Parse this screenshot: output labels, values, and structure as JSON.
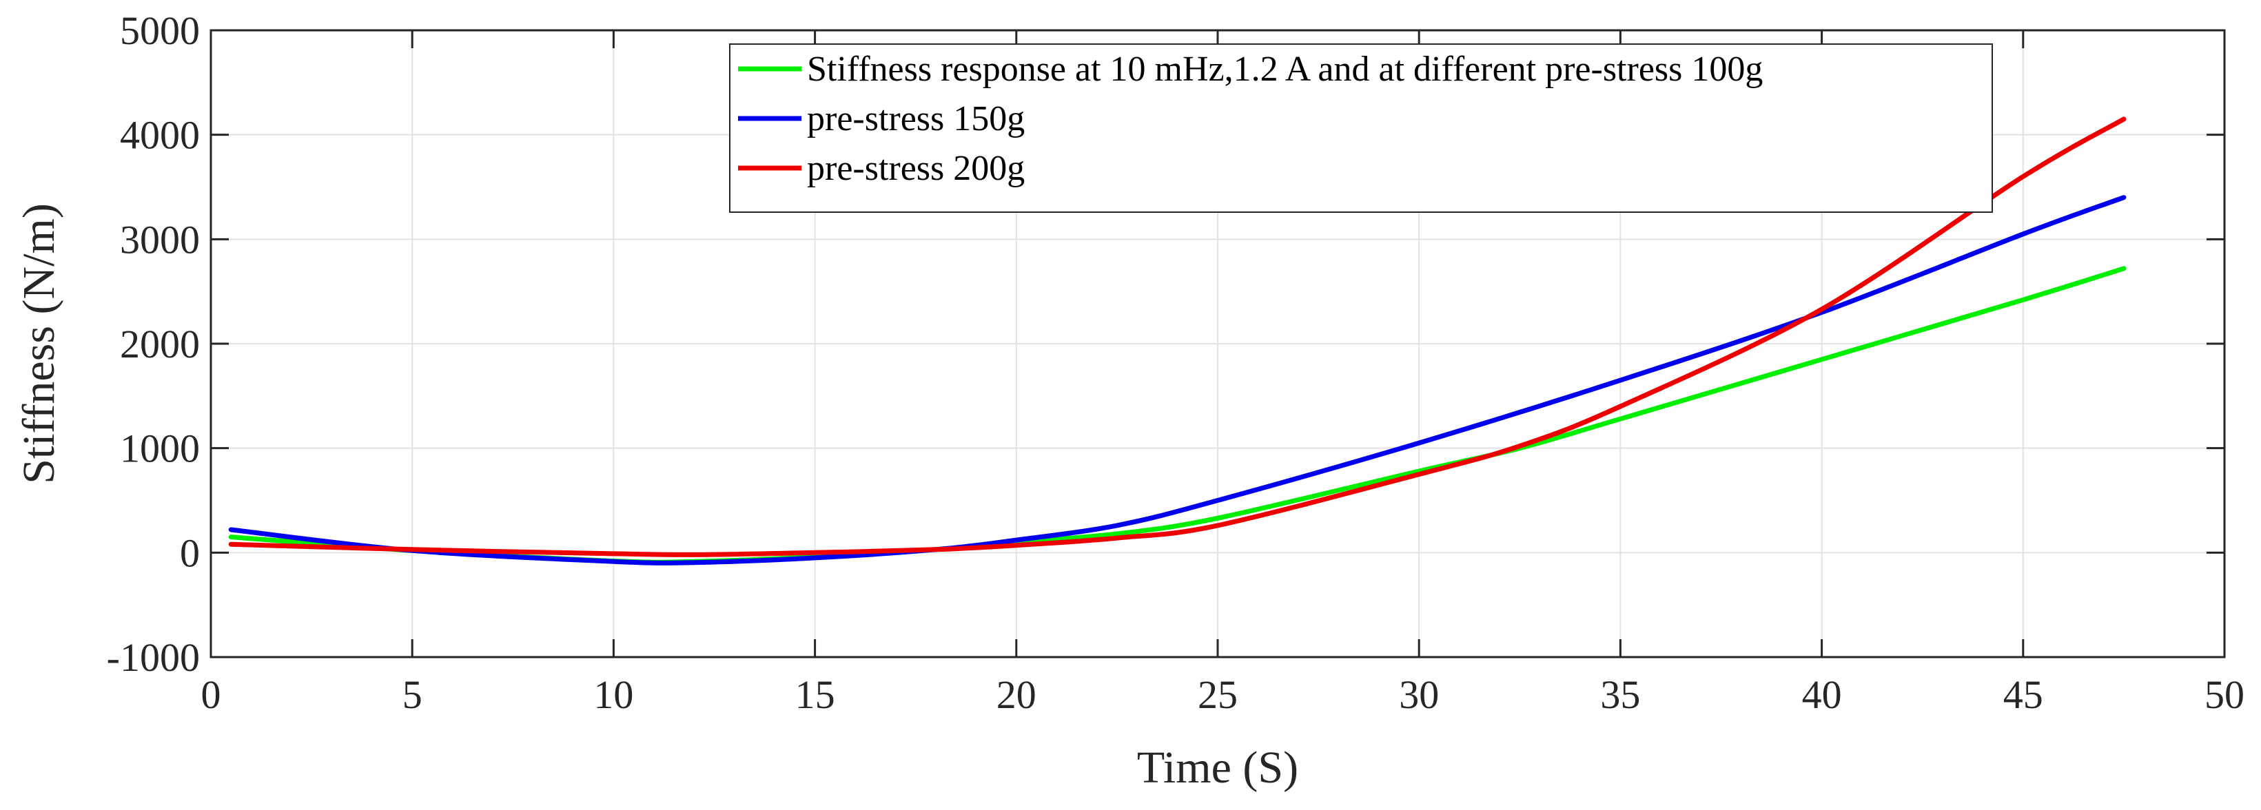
{
  "chart_data": {
    "type": "line",
    "title": "",
    "xlabel": "Time (S)",
    "ylabel": "Stiffness (N/m)",
    "xlim": [
      0,
      50
    ],
    "ylim": [
      -1000,
      5000
    ],
    "xticks": [
      0,
      5,
      10,
      15,
      20,
      25,
      30,
      35,
      40,
      45,
      50
    ],
    "yticks": [
      -1000,
      0,
      1000,
      2000,
      3000,
      4000,
      5000
    ],
    "grid": true,
    "legend_position": "top-center",
    "series": [
      {
        "name": "Stiffness response at 10 mHz,1.2 A and at different pre-stress 100g",
        "color": "#00ee00",
        "x": [
          0.5,
          5,
          10,
          12,
          15,
          18,
          20,
          22.5,
          25,
          30,
          32.5,
          35,
          40,
          45,
          47.5
        ],
        "y": [
          150,
          20,
          -80,
          -85,
          -40,
          30,
          100,
          180,
          330,
          780,
          1000,
          1280,
          1850,
          2420,
          2720
        ]
      },
      {
        "name": "pre-stress 150g",
        "color": "#0000ee",
        "x": [
          0.5,
          5,
          10,
          12,
          15,
          18,
          20,
          22.5,
          25,
          30,
          35,
          40,
          45,
          47.5
        ],
        "y": [
          220,
          20,
          -85,
          -95,
          -50,
          30,
          120,
          260,
          500,
          1050,
          1650,
          2300,
          3050,
          3400
        ]
      },
      {
        "name": "pre-stress 200g",
        "color": "#ee0000",
        "x": [
          0.5,
          5,
          10,
          12,
          15,
          18,
          20,
          22.5,
          25,
          30,
          32.5,
          35,
          40,
          45,
          47.5
        ],
        "y": [
          80,
          30,
          -10,
          -20,
          0,
          30,
          70,
          140,
          260,
          750,
          1020,
          1400,
          2330,
          3600,
          4150
        ]
      }
    ]
  }
}
